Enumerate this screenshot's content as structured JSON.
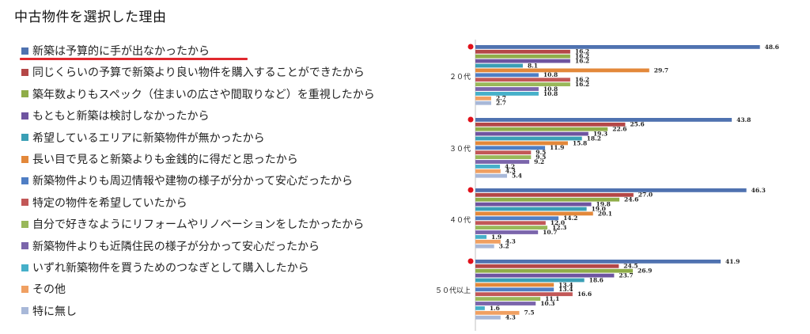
{
  "page_title": "中古物件を選択した理由",
  "colors": {
    "series": [
      "#4f72b0",
      "#b44747",
      "#8fad48",
      "#6e54a0",
      "#3a9fb5",
      "#e3883a",
      "#4f7ec4",
      "#c25757",
      "#99b85a",
      "#7b65ab",
      "#46b0c9",
      "#f0a062",
      "#a8b8d8"
    ],
    "highlight_underline": "#e0282e",
    "marker": "#e0101a"
  },
  "chart_data": {
    "type": "bar",
    "orientation": "horizontal",
    "categories": [
      "２０代",
      "３０代",
      "４０代",
      "５０代以上"
    ],
    "series": [
      {
        "name": "新築は予算的に手が出なかったから",
        "values": [
          48.6,
          43.8,
          46.3,
          41.9
        ]
      },
      {
        "name": "同じくらいの予算で新築より良い物件を購入することができたから",
        "values": [
          16.2,
          25.6,
          27.0,
          24.5
        ]
      },
      {
        "name": "築年数よりもスペック（住まいの広さや間取りなど）を重視したから",
        "values": [
          16.2,
          22.6,
          24.6,
          26.9
        ]
      },
      {
        "name": "もともと新築は検討しなかったから",
        "values": [
          16.2,
          19.3,
          19.8,
          23.7
        ]
      },
      {
        "name": "希望しているエリアに新築物件が無かったから",
        "values": [
          8.1,
          18.2,
          19.0,
          18.6
        ]
      },
      {
        "name": "長い目で見ると新築よりも金銭的に得だと思ったから",
        "values": [
          29.7,
          15.8,
          20.1,
          13.4
        ]
      },
      {
        "name": "新築物件よりも周辺情報や建物の様子が分かって安心だったから",
        "values": [
          10.8,
          11.9,
          14.2,
          13.4
        ]
      },
      {
        "name": "特定の物件を希望していたから",
        "values": [
          16.2,
          9.5,
          12.0,
          16.6
        ]
      },
      {
        "name": "自分で好きなようにリフォームやリノベーションをしたかったから",
        "values": [
          16.2,
          9.5,
          12.3,
          11.1
        ]
      },
      {
        "name": "新築物件よりも近隣住民の様子が分かって安心だったから",
        "values": [
          10.8,
          9.2,
          10.7,
          10.3
        ]
      },
      {
        "name": "いずれ新築物件を買うためのつなぎとして購入したから",
        "values": [
          10.8,
          4.2,
          1.9,
          1.6
        ]
      },
      {
        "name": "その他",
        "values": [
          2.7,
          4.3,
          4.3,
          7.5
        ]
      },
      {
        "name": "特に無し",
        "values": [
          2.7,
          5.4,
          3.2,
          4.3
        ]
      }
    ],
    "xlim": [
      0,
      50
    ],
    "highlighted_series": "新築は予算的に手が出なかったから"
  }
}
